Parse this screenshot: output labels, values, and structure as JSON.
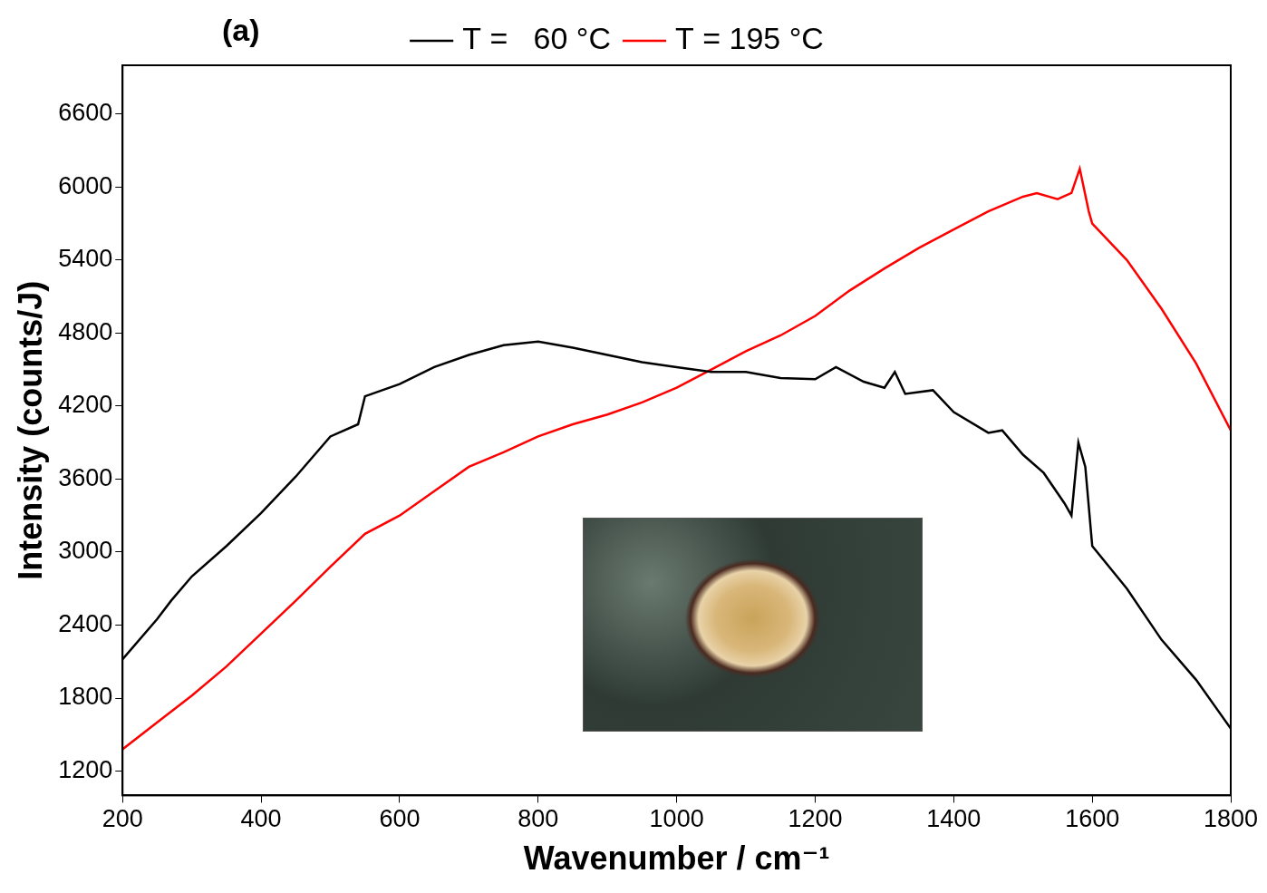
{
  "chart_data": {
    "type": "line",
    "x_label": "Wavenumber / cm⁻¹",
    "y_label": "Intensity (counts/J)",
    "annotations": [
      "(a)"
    ],
    "xlim": [
      200,
      1800
    ],
    "xticks": [
      200,
      400,
      600,
      800,
      1000,
      1200,
      1400,
      1600,
      1800
    ],
    "ylim": [
      1000,
      7000
    ],
    "yticks": [
      1200,
      1800,
      2400,
      3000,
      3600,
      4200,
      4800,
      5400,
      6000,
      6600
    ],
    "grid": false,
    "legend": "top",
    "series": [
      {
        "name": "T =   60 °C",
        "color": "#000000",
        "x": [
          200,
          250,
          270,
          300,
          350,
          400,
          450,
          500,
          540,
          550,
          600,
          650,
          700,
          750,
          800,
          850,
          900,
          950,
          1000,
          1050,
          1100,
          1150,
          1200,
          1230,
          1270,
          1300,
          1315,
          1330,
          1370,
          1400,
          1450,
          1470,
          1500,
          1530,
          1560,
          1570,
          1580,
          1590,
          1600,
          1650,
          1700,
          1750,
          1800
        ],
        "values": [
          2120,
          2450,
          2600,
          2800,
          3050,
          3320,
          3620,
          3950,
          4050,
          4280,
          4380,
          4520,
          4620,
          4700,
          4730,
          4680,
          4620,
          4560,
          4520,
          4480,
          4480,
          4430,
          4420,
          4520,
          4400,
          4350,
          4480,
          4300,
          4330,
          4150,
          3980,
          4000,
          3800,
          3650,
          3400,
          3300,
          3900,
          3700,
          3050,
          2700,
          2280,
          1950,
          1550
        ]
      },
      {
        "name": "T = 195 °C",
        "color": "#ff0000",
        "x": [
          200,
          250,
          300,
          350,
          400,
          450,
          500,
          550,
          600,
          650,
          700,
          750,
          800,
          850,
          900,
          950,
          1000,
          1050,
          1100,
          1150,
          1200,
          1250,
          1300,
          1350,
          1400,
          1450,
          1500,
          1520,
          1550,
          1570,
          1582,
          1595,
          1600,
          1650,
          1700,
          1750,
          1800
        ],
        "values": [
          1380,
          1600,
          1820,
          2060,
          2330,
          2600,
          2880,
          3150,
          3300,
          3500,
          3700,
          3820,
          3950,
          4050,
          4130,
          4230,
          4350,
          4500,
          4650,
          4780,
          4940,
          5150,
          5330,
          5500,
          5650,
          5800,
          5920,
          5950,
          5900,
          5950,
          6150,
          5800,
          5700,
          5400,
          5000,
          4550,
          4000
        ]
      }
    ]
  }
}
